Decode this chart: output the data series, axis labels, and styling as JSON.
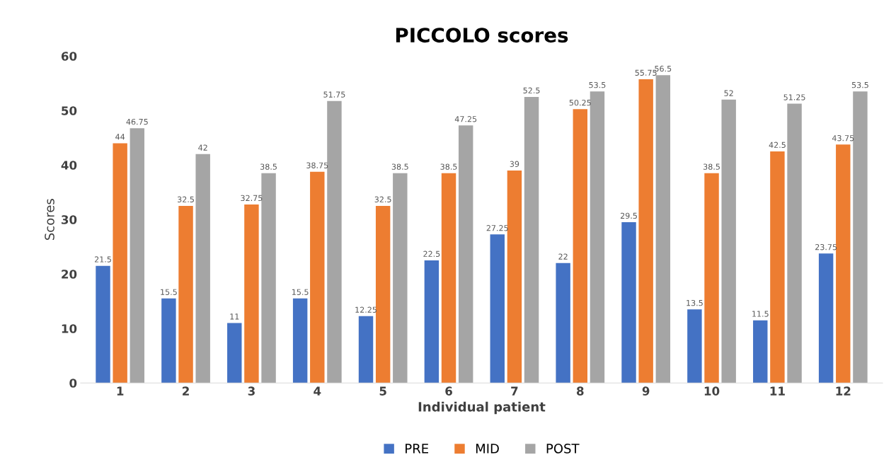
{
  "chart_data": {
    "type": "bar",
    "title": "PICCOLO scores",
    "xlabel": "Individual patient",
    "ylabel": "Scores",
    "categories": [
      "1",
      "2",
      "3",
      "4",
      "5",
      "6",
      "7",
      "8",
      "9",
      "10",
      "11",
      "12"
    ],
    "series": [
      {
        "name": "PRE",
        "color": "#4472c4",
        "values": [
          21.5,
          15.5,
          11,
          15.5,
          12.25,
          22.5,
          27.25,
          22,
          29.5,
          13.5,
          11.5,
          23.75
        ]
      },
      {
        "name": "MID",
        "color": "#ed7d31",
        "values": [
          44,
          32.5,
          32.75,
          38.75,
          32.5,
          38.5,
          39,
          50.25,
          55.75,
          38.5,
          42.5,
          43.75
        ]
      },
      {
        "name": "POST",
        "color": "#a5a5a5",
        "values": [
          46.75,
          42,
          38.5,
          51.75,
          38.5,
          47.25,
          52.5,
          53.5,
          56.5,
          52,
          51.25,
          53.5
        ]
      }
    ],
    "ylim": [
      0,
      60
    ],
    "yticks": [
      0,
      10,
      20,
      30,
      40,
      50,
      60
    ],
    "grid": false,
    "legend": "bottom",
    "data_labels": true
  }
}
